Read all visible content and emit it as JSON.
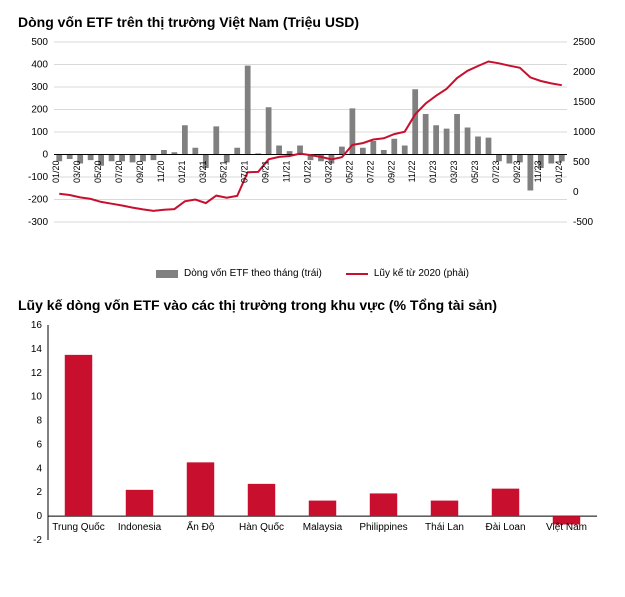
{
  "chart1": {
    "type": "bar+line",
    "title": "Dòng vốn ETF trên thị trường Việt Nam (Triệu USD)",
    "title_fontsize": 14,
    "background_color": "#ffffff",
    "grid_color": "#d9d9d9",
    "axis_color": "#000000",
    "left_axis": {
      "min": -300,
      "max": 500,
      "tick_step": 100,
      "label_fontsize": 10
    },
    "right_axis": {
      "min": -500,
      "max": 2500,
      "tick_step": 500,
      "label_fontsize": 10
    },
    "x_labels": [
      "01/20",
      "03/20",
      "05/20",
      "07/20",
      "09/20",
      "11/20",
      "01/21",
      "03/21",
      "05/21",
      "07/21",
      "09/21",
      "11/21",
      "01/22",
      "03/22",
      "05/22",
      "07/22",
      "09/22",
      "11/22",
      "01/23",
      "03/23",
      "05/23",
      "07/23",
      "09/23",
      "11/23",
      "01/24"
    ],
    "x_label_fontsize": 9,
    "bars": {
      "color": "#808080",
      "width_ratio": 0.55,
      "label": "Dòng vốn ETF theo tháng (trái)",
      "values": [
        -30,
        -20,
        -40,
        -25,
        -50,
        -30,
        -30,
        -35,
        -30,
        -25,
        20,
        10,
        130,
        30,
        -60,
        125,
        -35,
        30,
        395,
        5,
        210,
        40,
        15,
        40,
        -25,
        -30,
        -40,
        35,
        205,
        30,
        60,
        20,
        70,
        40,
        290,
        180,
        130,
        115,
        180,
        120,
        80,
        75,
        -30,
        -40,
        -35,
        -160,
        -60,
        -40,
        -30
      ]
    },
    "line": {
      "color": "#c8102e",
      "width": 2,
      "label": "Lũy kế từ 2020 (phải)",
      "values": [
        -30,
        -50,
        -90,
        -115,
        -165,
        -195,
        -225,
        -260,
        -290,
        -315,
        -295,
        -285,
        -155,
        -125,
        -185,
        -60,
        -95,
        -65,
        330,
        335,
        545,
        585,
        600,
        640,
        615,
        585,
        545,
        580,
        785,
        815,
        875,
        895,
        965,
        1005,
        1295,
        1475,
        1605,
        1720,
        1900,
        2020,
        2100,
        2175,
        2145,
        2105,
        2070,
        1910,
        1850,
        1810,
        1780
      ]
    },
    "legend_fontsize": 10
  },
  "chart2": {
    "type": "bar",
    "title": "Lũy kế dòng vốn ETF vào các thị trường trong khu vực (% Tổng tài sản)",
    "title_fontsize": 14,
    "background_color": "#ffffff",
    "axis_color": "#000000",
    "y_axis": {
      "min": -2,
      "max": 16,
      "tick_step": 2,
      "label_fontsize": 10
    },
    "categories": [
      "Trung Quốc",
      "Indonesia",
      "Ấn Độ",
      "Hàn Quốc",
      "Malaysia",
      "Philippines",
      "Thái Lan",
      "Đài Loan",
      "Việt Nam"
    ],
    "x_label_fontsize": 10,
    "bars": {
      "color": "#c8102e",
      "width_ratio": 0.45,
      "values": [
        13.5,
        2.2,
        4.5,
        2.7,
        1.3,
        1.9,
        1.3,
        2.3,
        -0.7
      ]
    }
  }
}
